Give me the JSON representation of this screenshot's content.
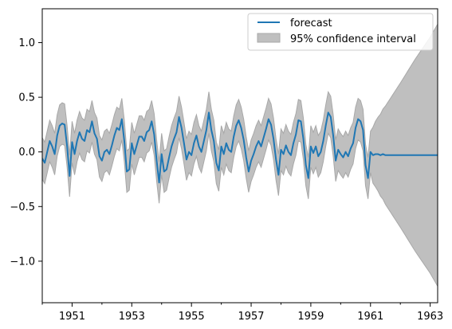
{
  "chart_data": {
    "type": "line",
    "title": "",
    "xlabel": "",
    "ylabel": "",
    "xlim": [
      1950.0,
      1963.25
    ],
    "ylim": [
      -1.38,
      1.31
    ],
    "grid": false,
    "legend_placement": "top-right",
    "x_ticks": [
      1951,
      1953,
      1955,
      1957,
      1959,
      1961,
      1963
    ],
    "x_tick_labels": [
      "1951",
      "1953",
      "1955",
      "1957",
      "1959",
      "1961",
      "1963"
    ],
    "y_ticks": [
      -1.0,
      -0.5,
      0.0,
      0.5,
      1.0
    ],
    "y_tick_labels": [
      "−1.0",
      "−0.5",
      "0.0",
      "0.5",
      "1.0"
    ],
    "colors": {
      "forecast": "#1f77b4",
      "interval": "#bfbfbf",
      "interval_edge": "#a8a8a8"
    },
    "series": [
      {
        "name": "forecast",
        "x_start": 1950.0,
        "x_step": 0.0833333,
        "values": [
          -0.06,
          -0.1,
          0.0,
          0.1,
          0.05,
          -0.02,
          0.15,
          0.24,
          0.26,
          0.25,
          0.05,
          -0.22,
          0.09,
          -0.02,
          0.1,
          0.18,
          0.12,
          0.1,
          0.2,
          0.18,
          0.28,
          0.17,
          0.12,
          -0.04,
          -0.08,
          0.0,
          0.02,
          -0.02,
          0.06,
          0.15,
          0.22,
          0.2,
          0.3,
          0.1,
          -0.18,
          -0.16,
          0.08,
          -0.02,
          0.06,
          0.14,
          0.14,
          0.1,
          0.18,
          0.2,
          0.28,
          0.16,
          -0.08,
          -0.28,
          -0.02,
          -0.18,
          -0.16,
          -0.05,
          0.05,
          0.12,
          0.18,
          0.32,
          0.22,
          0.08,
          -0.07,
          0.0,
          -0.03,
          0.08,
          0.15,
          0.05,
          0.0,
          0.1,
          0.2,
          0.36,
          0.2,
          0.1,
          -0.1,
          -0.17,
          0.05,
          -0.02,
          0.08,
          0.02,
          0.0,
          0.14,
          0.24,
          0.29,
          0.22,
          0.11,
          -0.05,
          -0.18,
          -0.08,
          -0.02,
          0.05,
          0.1,
          0.05,
          0.13,
          0.21,
          0.3,
          0.25,
          0.12,
          -0.07,
          -0.21,
          0.02,
          -0.02,
          0.06,
          0.0,
          -0.03,
          0.08,
          0.16,
          0.29,
          0.28,
          0.12,
          -0.12,
          -0.24,
          0.05,
          -0.01,
          0.05,
          -0.04,
          0.0,
          0.1,
          0.24,
          0.36,
          0.32,
          0.15,
          -0.08,
          0.02,
          -0.02,
          -0.05,
          0.0,
          -0.04,
          0.03,
          0.08,
          0.22,
          0.3,
          0.28,
          0.2,
          -0.12,
          -0.24,
          0.0,
          -0.03,
          -0.02,
          -0.02,
          -0.03,
          -0.02,
          -0.03,
          -0.03,
          -0.03,
          -0.03,
          -0.03,
          -0.03,
          -0.03,
          -0.03,
          -0.03,
          -0.03,
          -0.03,
          -0.03,
          -0.03,
          -0.03,
          -0.03,
          -0.03,
          -0.03,
          -0.03,
          -0.03,
          -0.03,
          -0.03,
          -0.03,
          -0.03,
          -0.03,
          -0.03,
          -0.03,
          -0.03,
          -0.03,
          -0.03,
          -0.03,
          -0.03,
          -0.03,
          -0.03,
          -0.03,
          -0.03,
          -0.03,
          -0.03,
          -0.03,
          -0.03,
          -0.03,
          -0.03,
          -0.03,
          -0.03,
          -0.03,
          -0.03,
          -0.03,
          -0.03,
          -0.03,
          -0.03,
          -0.03,
          -0.03,
          -0.03,
          -0.03,
          -0.03,
          -0.03,
          -0.03,
          -0.03,
          -0.03,
          -0.03,
          -0.03,
          -0.03,
          -0.03,
          -0.03,
          -0.03,
          -0.03,
          -0.03,
          -0.03,
          -0.03,
          -0.03,
          -0.03,
          -0.03,
          -0.03,
          -0.03,
          -0.03,
          -0.03,
          -0.03,
          -0.03,
          -0.03,
          -0.03,
          -0.03,
          -0.03,
          -0.03,
          -0.03,
          -0.03,
          -0.03,
          -0.03,
          -0.03,
          -0.03,
          -0.03,
          -0.03,
          -0.03,
          -0.03,
          -0.03,
          -0.03,
          -0.03,
          -0.03,
          -0.03,
          -0.03,
          -0.03,
          -0.03,
          -0.03,
          -0.03,
          -0.03,
          -0.03,
          -0.03,
          -0.03,
          -0.03,
          -0.03,
          -0.03,
          -0.03,
          -0.03,
          -0.03,
          -0.03,
          -0.03,
          -0.03,
          -0.03,
          -0.03,
          -0.03,
          -0.03,
          -0.03,
          -0.03,
          -0.03,
          -0.03,
          -0.03,
          -0.03,
          -0.03,
          -0.03,
          -0.03,
          -0.03,
          -0.03,
          -0.03,
          -0.03,
          -0.03,
          -0.03,
          -0.03,
          -0.03,
          -0.03,
          -0.03,
          -0.03,
          -0.03,
          -0.03,
          -0.03,
          -0.03,
          -0.03,
          -0.03,
          -0.03,
          -0.03,
          -0.03,
          -0.03,
          -0.03,
          -0.03,
          -0.03,
          -0.03,
          -0.03,
          -0.03,
          -0.03,
          -0.03,
          -0.03,
          -0.03,
          -0.03,
          -0.03,
          -0.03,
          -0.03,
          -0.03,
          -0.03,
          -0.03,
          -0.03,
          -0.03,
          -0.03,
          -0.03,
          -0.03,
          -0.03,
          -0.03,
          -0.03,
          -0.03,
          -0.03,
          -0.03,
          -0.03,
          -0.03,
          -0.03,
          -0.03,
          -0.03,
          -0.03,
          -0.03,
          -0.03,
          -0.03,
          -0.03,
          -0.03,
          -0.03,
          -0.03,
          -0.03,
          -0.03,
          -0.03,
          -0.03,
          -0.03,
          -0.03,
          -0.03,
          -0.03,
          -0.03,
          -0.03,
          -0.03,
          -0.03,
          -0.03,
          -0.03,
          -0.03,
          -0.03,
          -0.03,
          -0.03,
          -0.03,
          -0.03,
          -0.03,
          -0.03,
          -0.03,
          -0.03,
          -0.03,
          -0.03,
          -0.03,
          -0.03,
          -0.03,
          -0.03,
          -0.03,
          -0.03,
          -0.03,
          -0.03,
          -0.03,
          -0.03
        ]
      }
    ],
    "confidence_interval": {
      "name": "95% confidence interval",
      "in_sample_halfwidth": 0.19,
      "forecast_start": 1961.0,
      "forecast_halfwidth_points": [
        [
          1961.0,
          0.19
        ],
        [
          1961.1,
          0.27
        ],
        [
          1961.5,
          0.45
        ],
        [
          1962.0,
          0.66
        ],
        [
          1962.5,
          0.88
        ],
        [
          1963.0,
          1.08
        ],
        [
          1963.25,
          1.2
        ]
      ]
    }
  },
  "legend": {
    "forecast_label": "forecast",
    "interval_label": "95% confidence interval"
  }
}
